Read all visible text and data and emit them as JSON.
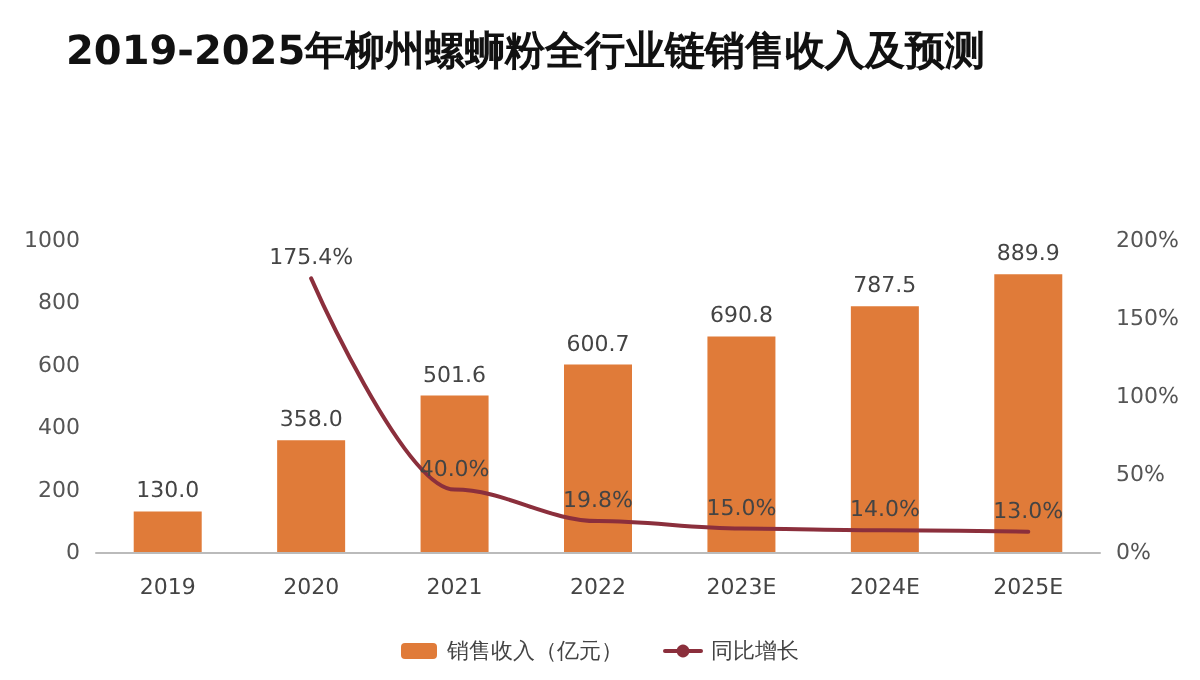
{
  "chart_data": {
    "type": "bar",
    "title": "2019-2025年柳州螺蛳粉全行业链销售收入及预测",
    "categories": [
      "2019",
      "2020",
      "2021",
      "2022",
      "2023E",
      "2024E",
      "2025E"
    ],
    "series": [
      {
        "name": "销售收入（亿元）",
        "color": "#e07b39",
        "values": [
          130.0,
          358.0,
          501.6,
          600.7,
          690.8,
          787.5,
          889.9
        ],
        "value_labels": [
          "130.0",
          "358.0",
          "501.6",
          "600.7",
          "690.8",
          "787.5",
          "889.9"
        ]
      },
      {
        "name": "同比增长",
        "type": "line",
        "axis": "y2",
        "color": "#8b2f3c",
        "values": [
          null,
          175.4,
          40.0,
          19.8,
          15.0,
          14.0,
          13.0
        ],
        "value_labels": [
          null,
          "175.4%",
          "40.0%",
          "19.8%",
          "15.0%",
          "14.0%",
          "13.0%"
        ]
      }
    ],
    "ylim": [
      0,
      1000
    ],
    "yticks": [
      0,
      200,
      400,
      600,
      800,
      1000
    ],
    "y2lim": [
      0,
      200
    ],
    "y2ticks": [
      {
        "value": 0,
        "label": "0%"
      },
      {
        "value": 50,
        "label": "50%"
      },
      {
        "value": 100,
        "label": "100%"
      },
      {
        "value": 150,
        "label": "150%"
      },
      {
        "value": 200,
        "label": "200%"
      }
    ],
    "grid": false,
    "legend": "bottom",
    "marker": "none"
  }
}
